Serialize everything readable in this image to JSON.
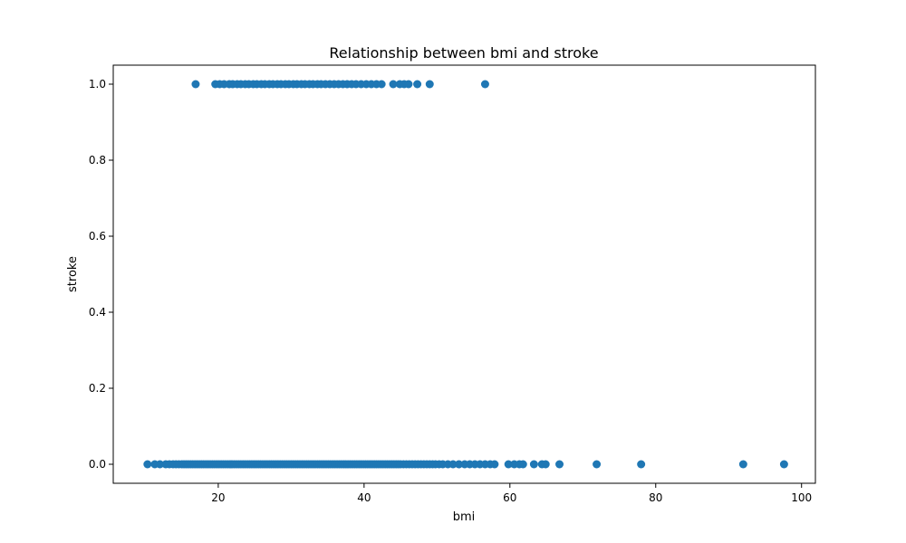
{
  "chart_data": {
    "type": "scatter",
    "title": "Relationship between bmi and stroke",
    "xlabel": "bmi",
    "ylabel": "stroke",
    "xlim": [
      5.6,
      101.9
    ],
    "ylim": [
      -0.05,
      1.05
    ],
    "xticks": [
      20,
      40,
      60,
      80,
      100
    ],
    "xtick_labels": [
      "20",
      "40",
      "60",
      "80",
      "100"
    ],
    "yticks": [
      0.0,
      0.2,
      0.4,
      0.6,
      0.8,
      1.0
    ],
    "ytick_labels": [
      "0.0",
      "0.2",
      "0.4",
      "0.6",
      "0.8",
      "1.0"
    ],
    "grid": false,
    "color": "#1f77b4",
    "series": [
      {
        "x": [
          10.3,
          11.3,
          12.0,
          12.8,
          13.3,
          13.8,
          14.2,
          14.6,
          15.0,
          15.3,
          15.6,
          15.9,
          16.2,
          16.5,
          16.8,
          17.1,
          17.4,
          17.7,
          18.0,
          18.3,
          18.6,
          18.9,
          19.2,
          19.5,
          19.8,
          20.1,
          20.4,
          20.7,
          21.0,
          21.3,
          21.6,
          21.9,
          22.2,
          22.5,
          22.8,
          23.1,
          23.4,
          23.7,
          24.0,
          24.3,
          24.6,
          24.9,
          25.2,
          25.5,
          25.8,
          26.1,
          26.4,
          26.7,
          27.0,
          27.3,
          27.6,
          27.9,
          28.2,
          28.5,
          28.8,
          29.1,
          29.4,
          29.7,
          30.0,
          30.3,
          30.6,
          30.9,
          31.2,
          31.5,
          31.8,
          32.1,
          32.4,
          32.7,
          33.0,
          33.3,
          33.6,
          33.9,
          34.2,
          34.5,
          34.8,
          35.1,
          35.4,
          35.7,
          36.0,
          36.3,
          36.6,
          36.9,
          37.2,
          37.5,
          37.8,
          38.1,
          38.4,
          38.7,
          39.0,
          39.3,
          39.6,
          39.9,
          40.2,
          40.5,
          40.8,
          41.1,
          41.4,
          41.7,
          42.0,
          42.3,
          42.6,
          42.9,
          43.2,
          43.5,
          43.8,
          44.1,
          44.4,
          44.7,
          45.0,
          45.4,
          45.8,
          46.2,
          46.6,
          47.0,
          47.4,
          47.8,
          48.2,
          48.6,
          49.0,
          49.4,
          49.8,
          50.3,
          50.8,
          51.5,
          52.2,
          53.0,
          53.8,
          54.5,
          55.2,
          55.9,
          56.6,
          57.3,
          57.9,
          59.8,
          60.6,
          61.3,
          61.8,
          63.3,
          64.4,
          64.9,
          66.8,
          71.9,
          78.0,
          92.0,
          97.6,
          16.9,
          19.6,
          20.2,
          20.8,
          21.5,
          22.0,
          22.6,
          23.1,
          23.7,
          24.2,
          24.8,
          25.3,
          25.9,
          26.4,
          27.0,
          27.5,
          28.1,
          28.6,
          29.2,
          29.7,
          30.3,
          30.8,
          31.4,
          31.9,
          32.5,
          33.0,
          33.6,
          34.1,
          34.7,
          35.3,
          35.9,
          36.5,
          37.1,
          37.7,
          38.3,
          38.9,
          39.6,
          40.3,
          41.0,
          41.7,
          42.4,
          44.0,
          44.9,
          45.5,
          46.1,
          47.3,
          49.0,
          56.6
        ],
        "y": [
          0,
          0,
          0,
          0,
          0,
          0,
          0,
          0,
          0,
          0,
          0,
          0,
          0,
          0,
          0,
          0,
          0,
          0,
          0,
          0,
          0,
          0,
          0,
          0,
          0,
          0,
          0,
          0,
          0,
          0,
          0,
          0,
          0,
          0,
          0,
          0,
          0,
          0,
          0,
          0,
          0,
          0,
          0,
          0,
          0,
          0,
          0,
          0,
          0,
          0,
          0,
          0,
          0,
          0,
          0,
          0,
          0,
          0,
          0,
          0,
          0,
          0,
          0,
          0,
          0,
          0,
          0,
          0,
          0,
          0,
          0,
          0,
          0,
          0,
          0,
          0,
          0,
          0,
          0,
          0,
          0,
          0,
          0,
          0,
          0,
          0,
          0,
          0,
          0,
          0,
          0,
          0,
          0,
          0,
          0,
          0,
          0,
          0,
          0,
          0,
          0,
          0,
          0,
          0,
          0,
          0,
          0,
          0,
          0,
          0,
          0,
          0,
          0,
          0,
          0,
          0,
          0,
          0,
          0,
          0,
          0,
          0,
          0,
          0,
          0,
          0,
          0,
          0,
          0,
          0,
          0,
          0,
          0,
          0,
          0,
          0,
          0,
          0,
          0,
          0,
          0,
          0,
          0,
          0,
          0,
          1,
          1,
          1,
          1,
          1,
          1,
          1,
          1,
          1,
          1,
          1,
          1,
          1,
          1,
          1,
          1,
          1,
          1,
          1,
          1,
          1,
          1,
          1,
          1,
          1,
          1,
          1,
          1,
          1,
          1,
          1,
          1,
          1,
          1,
          1,
          1,
          1,
          1,
          1,
          1,
          1,
          1,
          1,
          1,
          1,
          1,
          1,
          1
        ]
      }
    ]
  }
}
